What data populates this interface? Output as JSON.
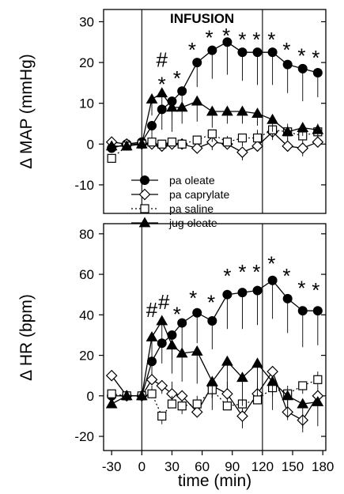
{
  "chart_data": [
    {
      "type": "line",
      "panel": "top",
      "ylabel": "Δ MAP (mmHg)",
      "xlabel": "",
      "xlim": [
        -38,
        183
      ],
      "ylim": [
        -17,
        33
      ],
      "yticks": [
        -10,
        0,
        10,
        20,
        30
      ],
      "xticks": [],
      "annotation": "INFUSION",
      "infusion_range": [
        0,
        120
      ],
      "legend": {
        "position": "bottom-center",
        "entries": [
          "pa oleate",
          "pa caprylate",
          "pa saline",
          "jug oleate"
        ]
      },
      "series": [
        {
          "name": "pa oleate",
          "marker": "filled-circle",
          "line": "solid",
          "x": [
            -30,
            -15,
            0,
            10,
            20,
            30,
            40,
            55,
            70,
            85,
            100,
            115,
            130,
            145,
            160,
            175
          ],
          "y": [
            -1,
            0,
            0.5,
            4.5,
            8.5,
            10.5,
            13,
            20,
            23,
            25,
            22.5,
            22.5,
            22.5,
            19.5,
            18.5,
            17.5
          ],
          "err": [
            0,
            0,
            0,
            3,
            5,
            4,
            4,
            6,
            7,
            8,
            7,
            8,
            8,
            7,
            8,
            6
          ]
        },
        {
          "name": "pa caprylate",
          "marker": "open-diamond",
          "line": "solid",
          "x": [
            -30,
            -15,
            0,
            10,
            20,
            30,
            40,
            55,
            70,
            85,
            100,
            115,
            130,
            145,
            160,
            175
          ],
          "y": [
            0.5,
            0,
            0,
            0,
            -0.5,
            0,
            0,
            -1,
            0.5,
            0,
            -2,
            -0.5,
            3,
            -0.5,
            -1,
            0.5
          ],
          "err": [
            0,
            0,
            0,
            1,
            1,
            1,
            1,
            1,
            2,
            2,
            2,
            2,
            2,
            2,
            2,
            2
          ]
        },
        {
          "name": "pa saline",
          "marker": "open-square",
          "line": "dotted",
          "x": [
            -30,
            -15,
            0,
            10,
            20,
            30,
            40,
            55,
            70,
            85,
            100,
            115,
            130,
            145,
            160,
            175
          ],
          "y": [
            -3.5,
            -0.5,
            0,
            0.5,
            0,
            0.5,
            0,
            1,
            2.5,
            0.5,
            1.5,
            1.5,
            3.5,
            3,
            2,
            3
          ],
          "err": [
            0,
            0,
            0,
            1,
            1,
            1,
            1,
            1,
            2,
            1,
            2,
            2,
            2,
            2,
            2,
            2
          ]
        },
        {
          "name": "jug oleate",
          "marker": "filled-triangle",
          "line": "solid",
          "x": [
            -30,
            -15,
            0,
            10,
            20,
            30,
            40,
            55,
            70,
            85,
            100,
            115,
            130,
            145,
            160,
            175
          ],
          "y": [
            -0.5,
            -0.5,
            0,
            11,
            12.5,
            9,
            9,
            10.5,
            8,
            8,
            8,
            7.5,
            6,
            3,
            4,
            3.5
          ],
          "err": [
            0,
            0,
            0,
            4,
            5,
            6,
            4,
            5,
            4,
            3,
            3,
            3,
            3,
            2,
            2,
            2
          ]
        }
      ],
      "significance": [
        {
          "x": 20,
          "y": 16,
          "text": "*"
        },
        {
          "x": 20,
          "y": 20.5,
          "text": "#"
        },
        {
          "x": 35,
          "y": 17.5,
          "text": "*"
        },
        {
          "x": 50,
          "y": 24.5,
          "text": "*"
        },
        {
          "x": 67,
          "y": 27.5,
          "text": "*"
        },
        {
          "x": 84,
          "y": 28,
          "text": "*"
        },
        {
          "x": 100,
          "y": 27,
          "text": "*"
        },
        {
          "x": 114,
          "y": 27,
          "text": "*"
        },
        {
          "x": 129,
          "y": 27,
          "text": "*"
        },
        {
          "x": 144,
          "y": 24.5,
          "text": "*"
        },
        {
          "x": 159,
          "y": 23,
          "text": "*"
        },
        {
          "x": 173,
          "y": 22.5,
          "text": "*"
        }
      ]
    },
    {
      "type": "line",
      "panel": "bottom",
      "ylabel": "Δ HR (bpm)",
      "xlabel": "time (min)",
      "xlim": [
        -38,
        183
      ],
      "ylim": [
        -27,
        85
      ],
      "yticks": [
        -20,
        0,
        20,
        40,
        60,
        80
      ],
      "xticks": [
        -30,
        0,
        30,
        60,
        90,
        120,
        150,
        180
      ],
      "xtick_labels": [
        "-30",
        "0",
        "30",
        "60",
        "90",
        "120",
        "150",
        "180"
      ],
      "infusion_range": [
        0,
        120
      ],
      "series": [
        {
          "name": "pa oleate",
          "marker": "filled-circle",
          "line": "solid",
          "x": [
            -30,
            -15,
            0,
            10,
            20,
            30,
            40,
            55,
            70,
            85,
            100,
            115,
            130,
            145,
            160,
            175
          ],
          "y": [
            0,
            0,
            0,
            17,
            26,
            30,
            36,
            41,
            37,
            50,
            51,
            52,
            57,
            48,
            42,
            42
          ],
          "err": [
            0,
            0,
            0,
            8,
            10,
            12,
            14,
            15,
            14,
            17,
            18,
            17,
            19,
            17,
            18,
            17
          ]
        },
        {
          "name": "pa caprylate",
          "marker": "open-diamond",
          "line": "solid",
          "x": [
            -30,
            -15,
            0,
            10,
            20,
            30,
            40,
            55,
            70,
            85,
            100,
            115,
            130,
            145,
            160,
            175
          ],
          "y": [
            10,
            0,
            0,
            8,
            5,
            1,
            0,
            -8,
            5,
            1,
            -10,
            1,
            12,
            -8,
            -12,
            0
          ],
          "err": [
            0,
            0,
            0,
            4,
            4,
            6,
            6,
            6,
            6,
            6,
            6,
            6,
            6,
            6,
            6,
            6
          ]
        },
        {
          "name": "pa saline",
          "marker": "open-square",
          "line": "dotted",
          "x": [
            -30,
            -15,
            0,
            10,
            20,
            30,
            40,
            55,
            70,
            85,
            100,
            115,
            130,
            145,
            160,
            175
          ],
          "y": [
            1,
            0,
            0,
            1,
            -10,
            -4,
            -5,
            -4,
            3,
            -5,
            -4,
            -2,
            4,
            1,
            5,
            8
          ],
          "err": [
            0,
            0,
            0,
            4,
            4,
            4,
            4,
            4,
            4,
            4,
            4,
            4,
            4,
            4,
            4,
            4
          ]
        },
        {
          "name": "jug oleate",
          "marker": "filled-triangle",
          "line": "solid",
          "x": [
            -30,
            -15,
            0,
            10,
            20,
            30,
            40,
            55,
            70,
            85,
            100,
            115,
            130,
            145,
            160,
            175
          ],
          "y": [
            -4,
            0,
            0,
            29,
            37,
            25,
            21,
            22,
            7,
            17,
            9,
            16,
            7,
            0,
            -4,
            -3
          ],
          "err": [
            0,
            0,
            0,
            10,
            12,
            14,
            14,
            16,
            14,
            14,
            14,
            14,
            14,
            12,
            12,
            12
          ]
        }
      ],
      "significance": [
        {
          "x": 10,
          "y": 42,
          "text": "#"
        },
        {
          "x": 22,
          "y": 46,
          "text": "#"
        },
        {
          "x": 35,
          "y": 43,
          "text": "*"
        },
        {
          "x": 51,
          "y": 51,
          "text": "*"
        },
        {
          "x": 69,
          "y": 49,
          "text": "*"
        },
        {
          "x": 85,
          "y": 62,
          "text": "*"
        },
        {
          "x": 100,
          "y": 64,
          "text": "*"
        },
        {
          "x": 114,
          "y": 64,
          "text": "*"
        },
        {
          "x": 129,
          "y": 68,
          "text": "*"
        },
        {
          "x": 144,
          "y": 62,
          "text": "*"
        },
        {
          "x": 159,
          "y": 56,
          "text": "*"
        },
        {
          "x": 173,
          "y": 55,
          "text": "*"
        }
      ]
    }
  ]
}
